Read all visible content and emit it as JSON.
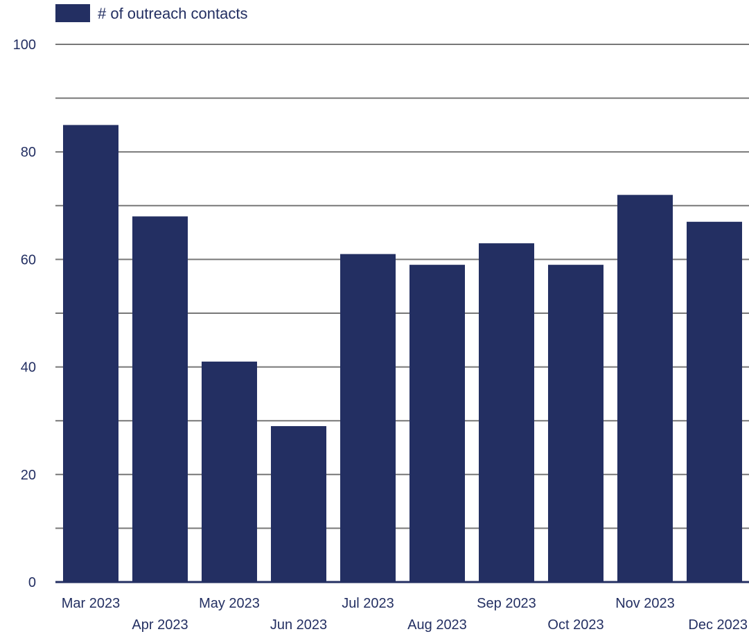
{
  "colors": {
    "bar": "#232f62",
    "grid": "#777777",
    "text": "#232f62"
  },
  "chart_data": {
    "type": "bar",
    "categories": [
      "Mar 2023",
      "Apr 2023",
      "May 2023",
      "Jun 2023",
      "Jul 2023",
      "Aug 2023",
      "Sep 2023",
      "Oct 2023",
      "Nov 2023",
      "Dec 2023"
    ],
    "series": [
      {
        "name": "# of outreach contacts",
        "values": [
          85,
          68,
          41,
          29,
          61,
          59,
          63,
          59,
          72,
          67
        ]
      }
    ],
    "title": "",
    "xlabel": "",
    "ylabel": "",
    "ylim": [
      0,
      100
    ],
    "yticks": [
      0,
      20,
      40,
      60,
      80,
      100
    ],
    "grid": true,
    "legend_position": "top-left"
  }
}
